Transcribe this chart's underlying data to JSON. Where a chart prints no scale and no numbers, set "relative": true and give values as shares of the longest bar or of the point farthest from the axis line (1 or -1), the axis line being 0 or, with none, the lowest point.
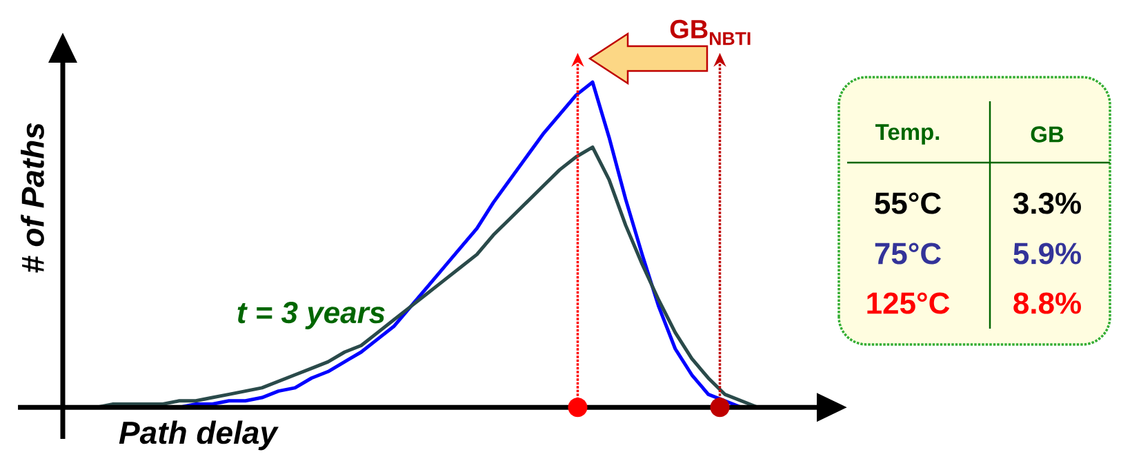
{
  "chart_data": [
    {
      "type": "line",
      "relative": true,
      "xlabel": "Path delay",
      "ylabel": "# of Paths",
      "categories": [
        null,
        null,
        null,
        null,
        null,
        null,
        null,
        null,
        null,
        null,
        null,
        null,
        null,
        null,
        null,
        null,
        null,
        null,
        null,
        null,
        null,
        null,
        null,
        null,
        null,
        null,
        null,
        null,
        null,
        null,
        null,
        null,
        null,
        null,
        null,
        null,
        null,
        null,
        null,
        null,
        null
      ],
      "series": [
        {
          "color": "#0000ff",
          "values": [
            null,
            null,
            null,
            null,
            0,
            0,
            0.01,
            0.01,
            0.02,
            0.02,
            0.03,
            0.05,
            0.06,
            0.09,
            0.11,
            0.14,
            0.17,
            0.21,
            0.25,
            0.31,
            0.37,
            0.43,
            0.49,
            0.55,
            0.63,
            0.7,
            0.77,
            0.84,
            0.9,
            0.96,
            1,
            0.83,
            0.64,
            0.47,
            0.31,
            0.18,
            0.1,
            0.04,
            0.02,
            0,
            null
          ]
        },
        {
          "color": "#2a4a4a",
          "values": [
            0,
            0.01,
            0.01,
            0.01,
            0.01,
            0.02,
            0.02,
            0.03,
            0.04,
            0.05,
            0.06,
            0.08,
            0.1,
            0.12,
            0.14,
            0.17,
            0.19,
            0.23,
            0.27,
            0.31,
            0.35,
            0.39,
            0.43,
            0.47,
            0.53,
            0.58,
            0.63,
            0.68,
            0.73,
            0.77,
            0.8,
            0.7,
            0.56,
            0.44,
            0.33,
            0.23,
            0.15,
            0.09,
            0.04,
            0.02,
            0
          ]
        }
      ],
      "annotations": [
        "t = 3 years",
        "GB$_{NBTI}$"
      ]
    },
    {
      "type": "other",
      "color": "#006600",
      "categories": [
        "Temp.",
        "GB"
      ],
      "cell_labels": [
        [
          "55°C",
          "3.3%"
        ],
        [
          "75°C",
          "5.9%"
        ],
        [
          "125°C",
          "8.8%"
        ]
      ],
      "colors": [
        [
          "#000000",
          "#000000"
        ],
        [
          "#333399",
          "#333399"
        ],
        [
          "#ff0000",
          "#ff0000"
        ]
      ]
    }
  ]
}
